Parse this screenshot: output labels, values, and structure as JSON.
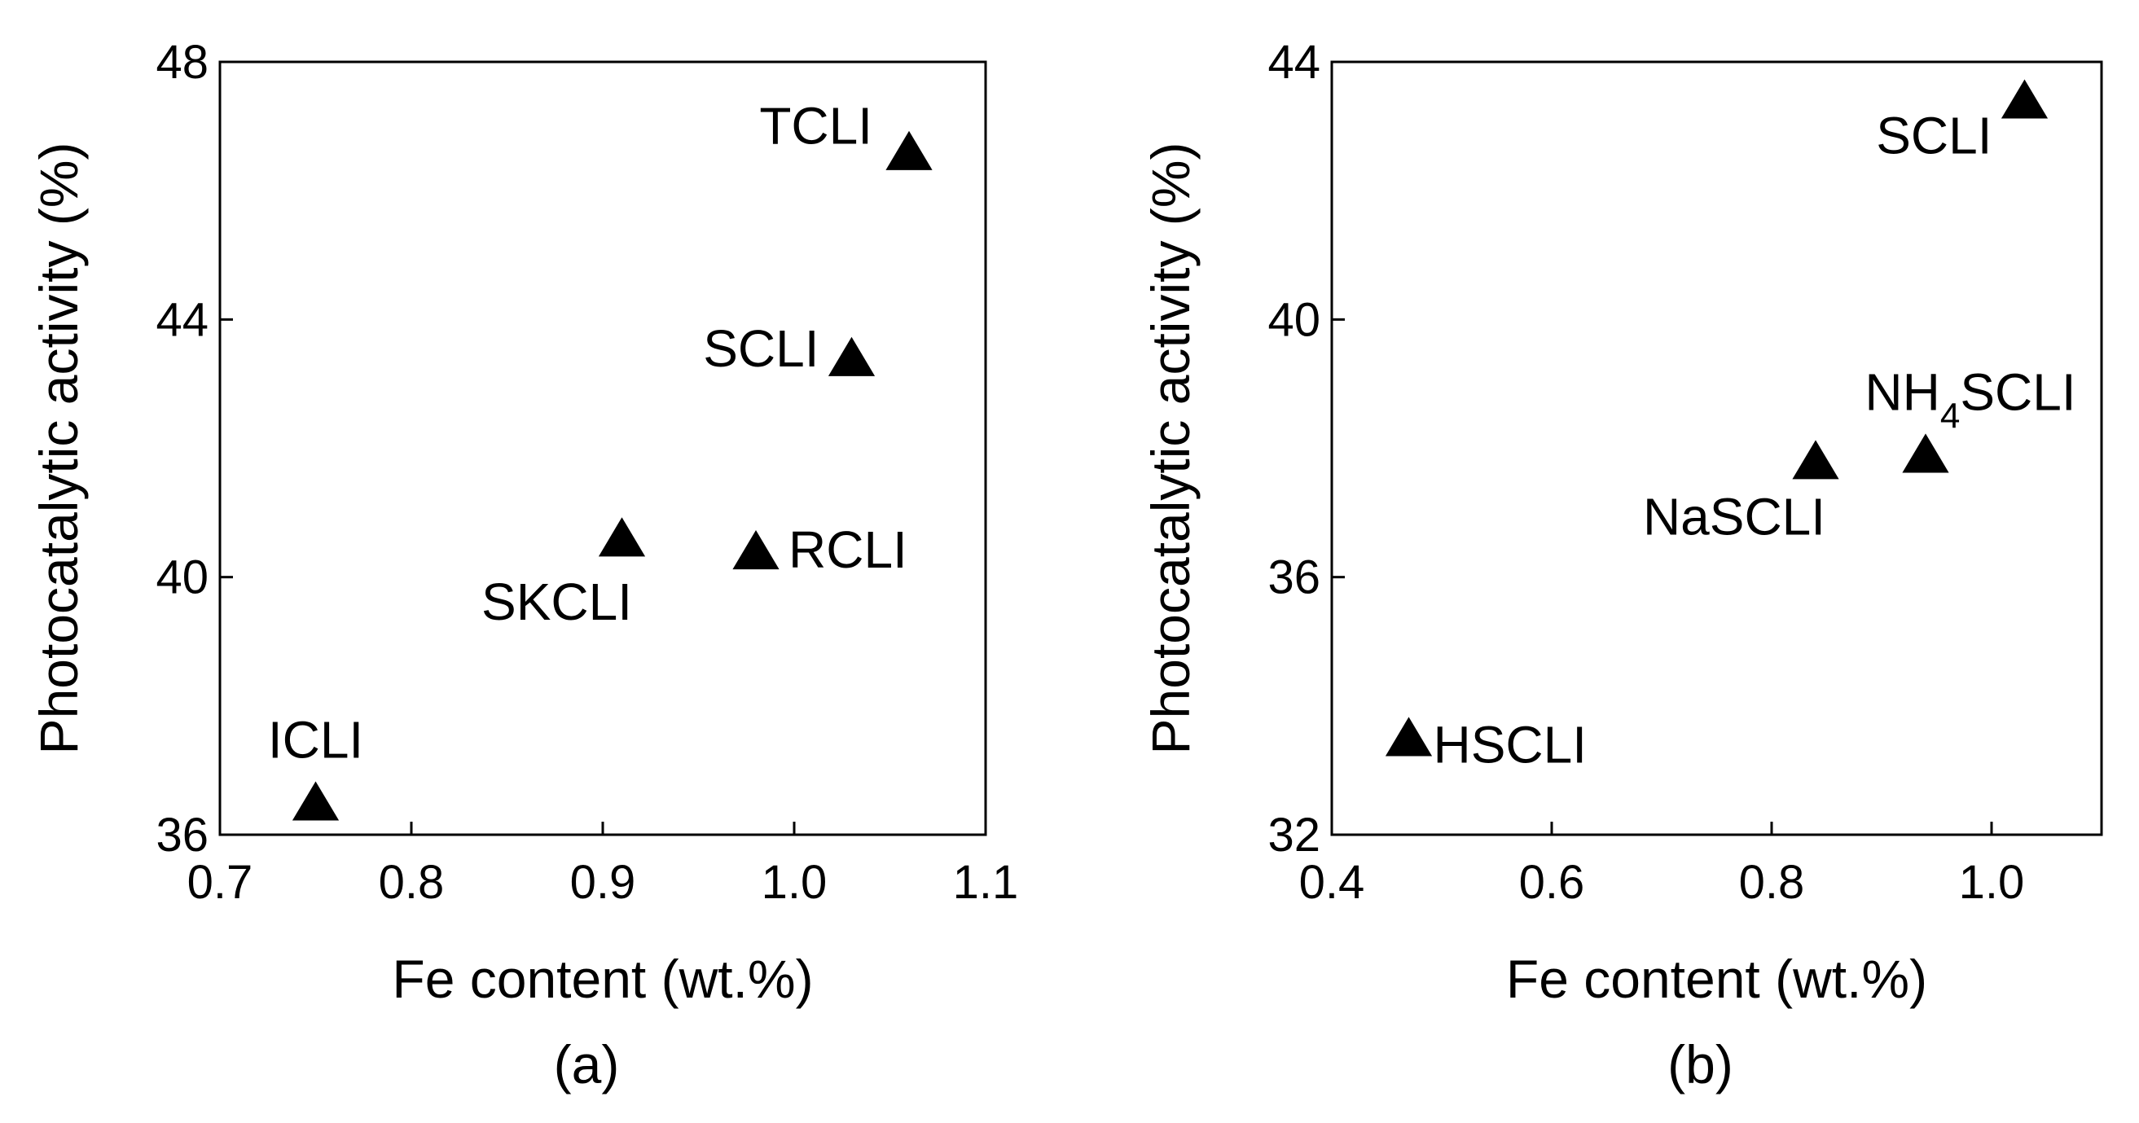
{
  "chart_data": [
    {
      "type": "scatter",
      "panel_label": "(a)",
      "xlabel": "Fe content (wt.%)",
      "ylabel": "Photocatalytic activity (%)",
      "xlim": [
        0.7,
        1.1
      ],
      "ylim": [
        36,
        48
      ],
      "xticks": [
        0.7,
        0.8,
        0.9,
        1.0,
        1.1
      ],
      "xtick_labels": [
        "0.7",
        "0.8",
        "0.9",
        "1.0",
        "1.1"
      ],
      "yticks": [
        36,
        40,
        44,
        48
      ],
      "ytick_labels": [
        "36",
        "40",
        "44",
        "48"
      ],
      "marker": "filled-triangle",
      "points": [
        {
          "label": "ICLI",
          "x": 0.75,
          "y": 36.5
        },
        {
          "label": "SKCLI",
          "x": 0.91,
          "y": 40.6
        },
        {
          "label": "RCLI",
          "x": 0.98,
          "y": 40.4
        },
        {
          "label": "SCLI",
          "x": 1.03,
          "y": 43.4
        },
        {
          "label": "TCLI",
          "x": 1.06,
          "y": 46.6
        }
      ]
    },
    {
      "type": "scatter",
      "panel_label": "(b)",
      "xlabel": "Fe content (wt.%)",
      "ylabel": "Photocatalytic activity (%)",
      "xlim": [
        0.4,
        1.1
      ],
      "ylim": [
        32,
        44
      ],
      "xticks": [
        0.4,
        0.6,
        0.8,
        1.0
      ],
      "xtick_labels": [
        "0.4",
        "0.6",
        "0.8",
        "1.0"
      ],
      "yticks": [
        32,
        36,
        40,
        44
      ],
      "ytick_labels": [
        "32",
        "36",
        "40",
        "44"
      ],
      "marker": "filled-triangle",
      "points": [
        {
          "label": "HSCLI",
          "x": 0.47,
          "y": 33.5
        },
        {
          "label": "NaSCLI",
          "x": 0.84,
          "y": 37.8
        },
        {
          "label": "NH4SCLI",
          "label_main": "NH",
          "label_sub": "4",
          "label_rest": "SCLI",
          "x": 0.94,
          "y": 37.9
        },
        {
          "label": "SCLI",
          "x": 1.03,
          "y": 43.4
        }
      ]
    }
  ]
}
